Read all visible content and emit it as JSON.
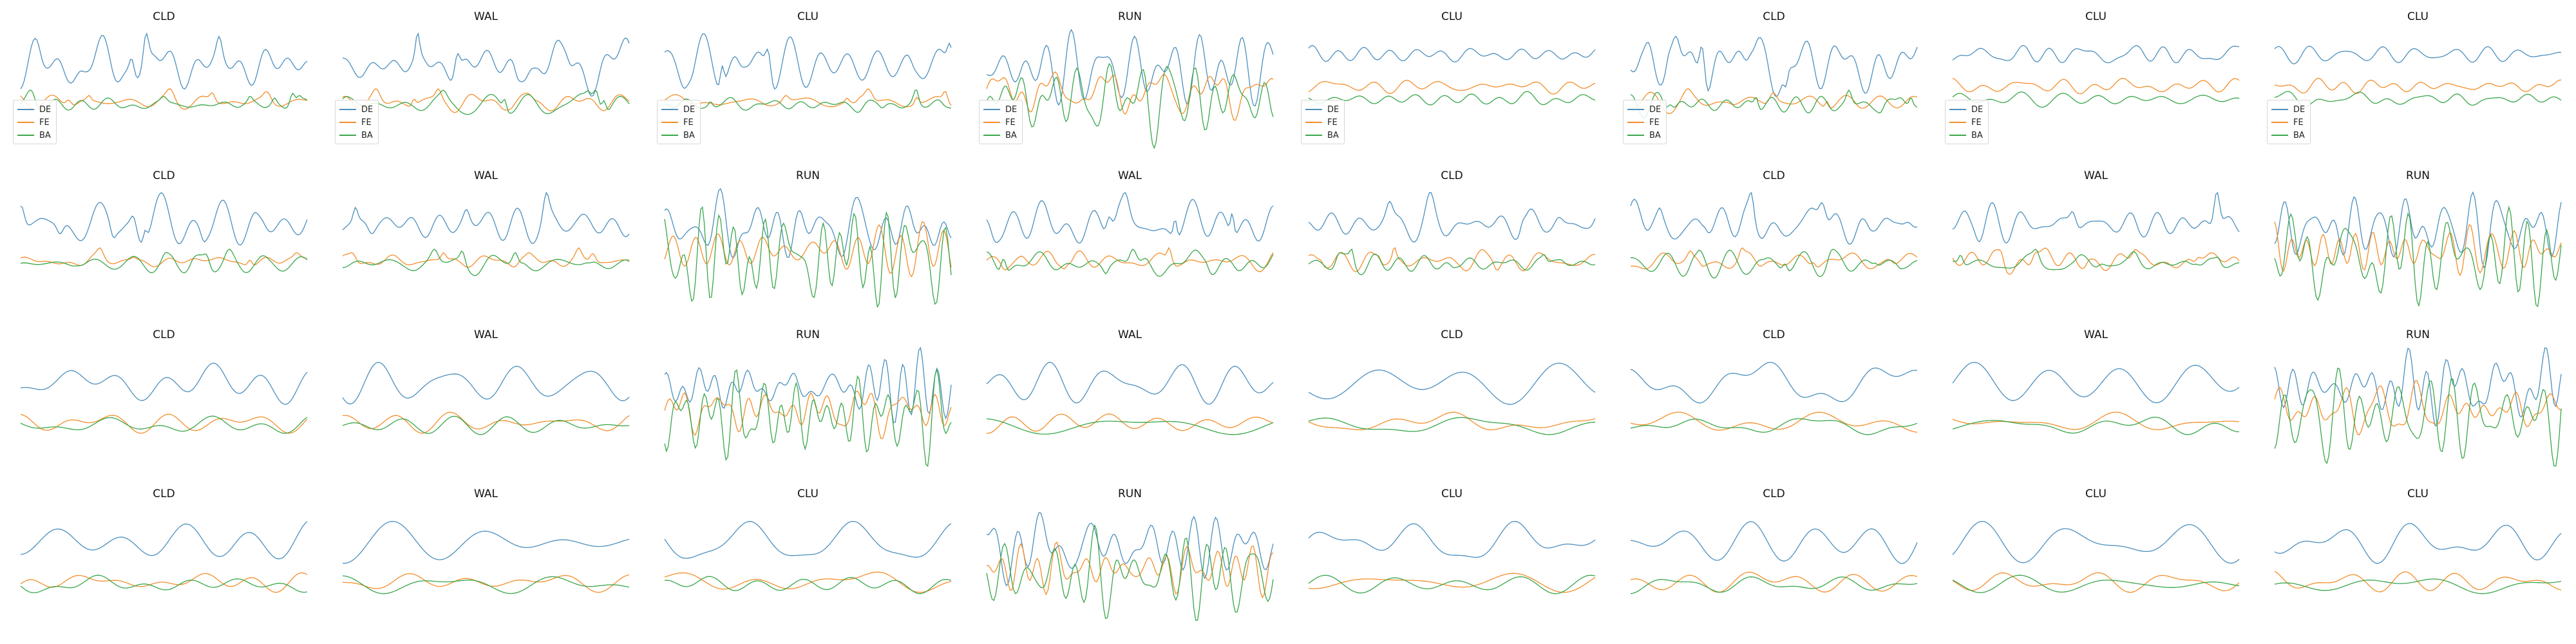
{
  "chart_data": {
    "type": "line",
    "layout": "4x8 grid of small multiples, no axes",
    "series_names": [
      "DE",
      "FE",
      "BA"
    ],
    "series_colors": {
      "DE": "#4c8fbd",
      "FE": "#f28e2b",
      "BA": "#3aa64b"
    },
    "legend": "lower-left, first row only",
    "grid": false,
    "panels": [
      {
        "title": "CLD",
        "legend": true,
        "regime": "spiky"
      },
      {
        "title": "WAL",
        "legend": true,
        "regime": "spiky"
      },
      {
        "title": "CLU",
        "legend": true,
        "regime": "spiky"
      },
      {
        "title": "RUN",
        "legend": true,
        "regime": "run"
      },
      {
        "title": "CLU",
        "legend": true,
        "regime": "calm"
      },
      {
        "title": "CLD",
        "legend": true,
        "regime": "spiky"
      },
      {
        "title": "CLU",
        "legend": true,
        "regime": "calm"
      },
      {
        "title": "CLU",
        "legend": true,
        "regime": "calm"
      },
      {
        "title": "CLD",
        "legend": false,
        "regime": "spiky"
      },
      {
        "title": "WAL",
        "legend": false,
        "regime": "spiky"
      },
      {
        "title": "RUN",
        "legend": false,
        "regime": "run"
      },
      {
        "title": "WAL",
        "legend": false,
        "regime": "spiky"
      },
      {
        "title": "CLD",
        "legend": false,
        "regime": "spiky"
      },
      {
        "title": "CLD",
        "legend": false,
        "regime": "spiky"
      },
      {
        "title": "WAL",
        "legend": false,
        "regime": "spiky"
      },
      {
        "title": "RUN",
        "legend": false,
        "regime": "run"
      },
      {
        "title": "CLD",
        "legend": false,
        "regime": "smooth"
      },
      {
        "title": "WAL",
        "legend": false,
        "regime": "smooth"
      },
      {
        "title": "RUN",
        "legend": false,
        "regime": "run"
      },
      {
        "title": "WAL",
        "legend": false,
        "regime": "smooth"
      },
      {
        "title": "CLD",
        "legend": false,
        "regime": "smooth"
      },
      {
        "title": "CLD",
        "legend": false,
        "regime": "smooth"
      },
      {
        "title": "WAL",
        "legend": false,
        "regime": "smooth"
      },
      {
        "title": "RUN",
        "legend": false,
        "regime": "run"
      },
      {
        "title": "CLD",
        "legend": false,
        "regime": "smooth"
      },
      {
        "title": "WAL",
        "legend": false,
        "regime": "smooth"
      },
      {
        "title": "CLU",
        "legend": false,
        "regime": "smooth"
      },
      {
        "title": "RUN",
        "legend": false,
        "regime": "run"
      },
      {
        "title": "CLU",
        "legend": false,
        "regime": "smooth"
      },
      {
        "title": "CLD",
        "legend": false,
        "regime": "smooth"
      },
      {
        "title": "CLU",
        "legend": false,
        "regime": "smooth"
      },
      {
        "title": "CLU",
        "legend": false,
        "regime": "smooth"
      }
    ]
  }
}
